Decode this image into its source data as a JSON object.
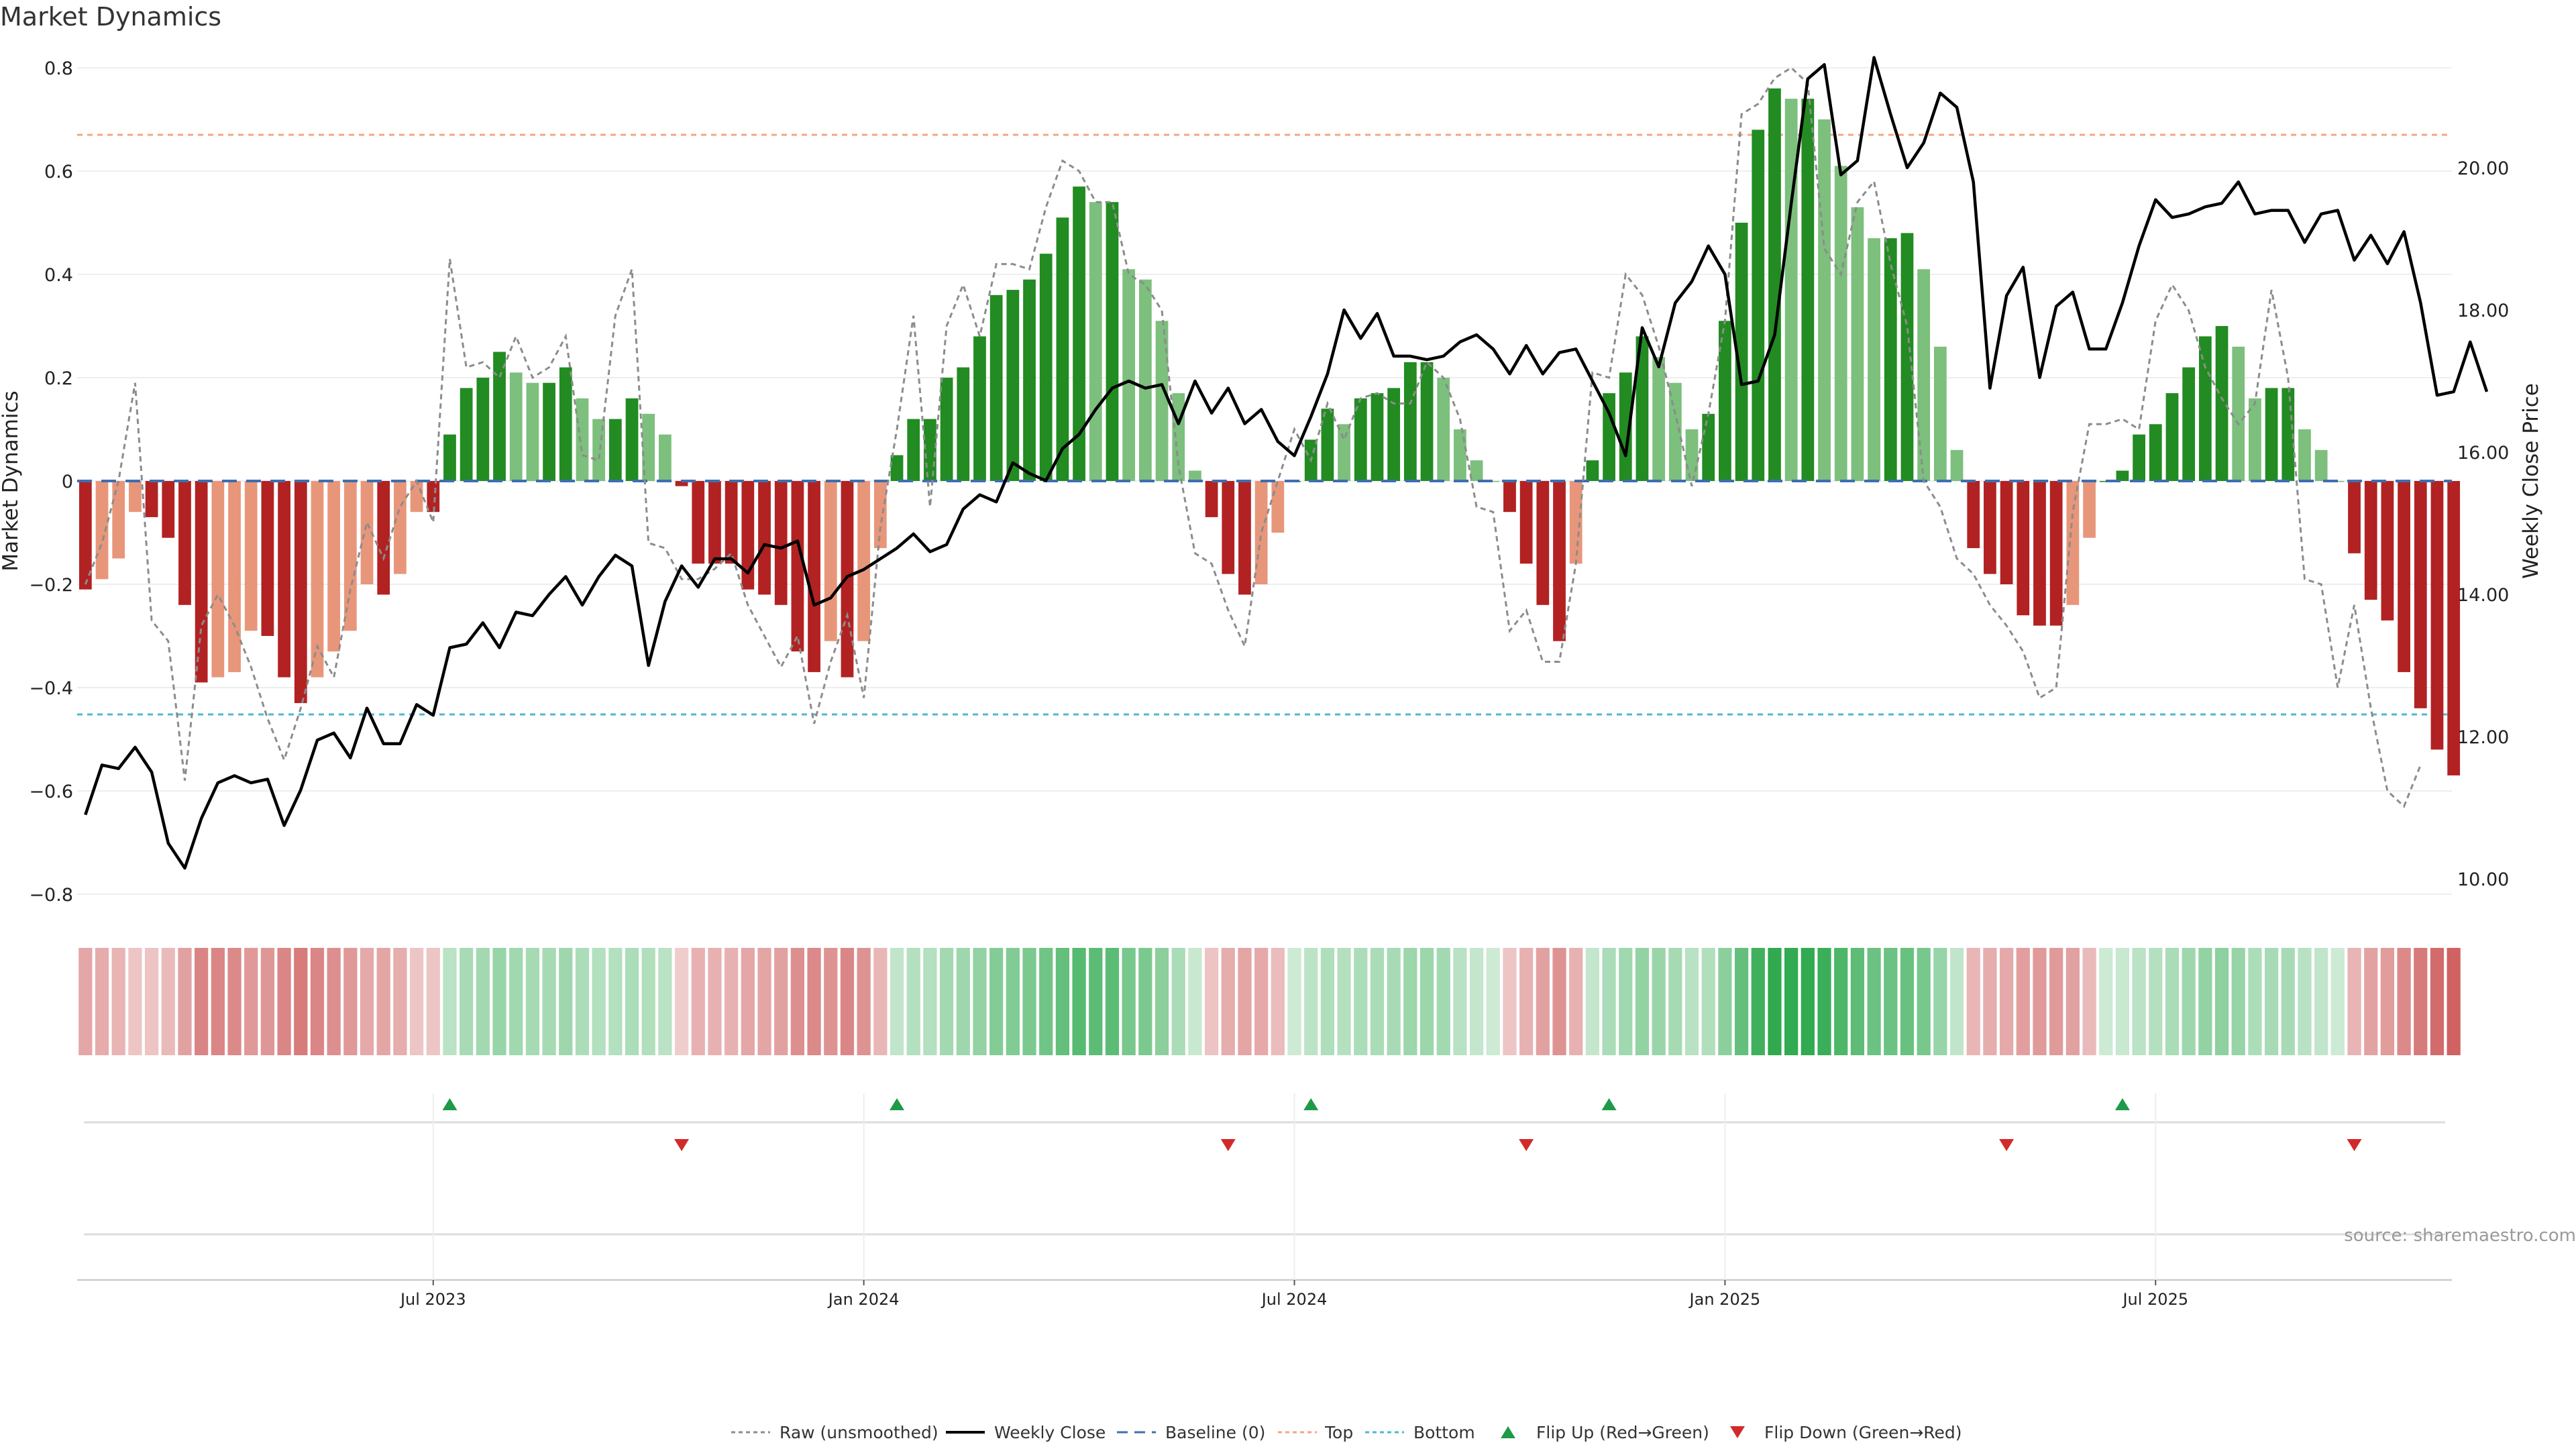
{
  "chart_data": {
    "type": "bar",
    "title": "Market Dynamics",
    "ylabel_left": "Market Dynamics",
    "ylabel_right": "Weekly Close Price",
    "source": "source: sharemaestro.com",
    "left_axis": {
      "ylim": [
        -0.85,
        0.82
      ],
      "ticks": [
        0.8,
        0.6,
        0.4,
        0.2,
        0,
        -0.2,
        -0.4,
        -0.6,
        -0.8
      ],
      "tick_labels": [
        "0.8",
        "0.6",
        "0.4",
        "0.2",
        "0",
        "−0.2",
        "−0.4",
        "−0.6",
        "−0.8"
      ]
    },
    "right_axis": {
      "ylim": [
        9.7,
        21.9
      ],
      "ticks": [
        20,
        18,
        16,
        14,
        12,
        10
      ],
      "tick_labels": [
        "20.00",
        "18.00",
        "16.00",
        "14.00",
        "12.00",
        "10.00"
      ]
    },
    "x_axis": {
      "ticks": [
        21.5,
        47.5,
        73.5,
        99.5,
        125.5
      ],
      "tick_labels": [
        "Jul 2023",
        "Jan 2024",
        "Jul 2024",
        "Jan 2025",
        "Jul 2025"
      ]
    },
    "top_level": 0.67,
    "bottom_level": -0.45,
    "dynamics": [
      -0.21,
      -0.19,
      -0.15,
      -0.06,
      -0.07,
      -0.11,
      -0.24,
      -0.39,
      -0.38,
      -0.37,
      -0.29,
      -0.3,
      -0.38,
      -0.43,
      -0.38,
      -0.33,
      -0.29,
      -0.2,
      -0.22,
      -0.18,
      -0.06,
      -0.06,
      0.09,
      0.18,
      0.2,
      0.25,
      0.21,
      0.19,
      0.19,
      0.22,
      0.16,
      0.12,
      0.12,
      0.16,
      0.13,
      0.09,
      -0.01,
      -0.16,
      -0.16,
      -0.16,
      -0.21,
      -0.22,
      -0.24,
      -0.33,
      -0.37,
      -0.31,
      -0.38,
      -0.31,
      -0.13,
      0.05,
      0.12,
      0.12,
      0.2,
      0.22,
      0.28,
      0.36,
      0.37,
      0.39,
      0.44,
      0.51,
      0.57,
      0.54,
      0.54,
      0.41,
      0.39,
      0.31,
      0.17,
      0.02,
      -0.07,
      -0.18,
      -0.22,
      -0.2,
      -0.1,
      0.0,
      0.08,
      0.14,
      0.11,
      0.16,
      0.17,
      0.18,
      0.23,
      0.23,
      0.2,
      0.1,
      0.04,
      0.0,
      -0.06,
      -0.16,
      -0.24,
      -0.31,
      -0.16,
      0.04,
      0.17,
      0.21,
      0.28,
      0.24,
      0.19,
      0.1,
      0.13,
      0.31,
      0.5,
      0.68,
      0.76,
      0.74,
      0.74,
      0.7,
      0.61,
      0.53,
      0.47,
      0.47,
      0.48,
      0.41,
      0.26,
      0.06,
      -0.13,
      -0.18,
      -0.2,
      -0.26,
      -0.28,
      -0.28,
      -0.24,
      -0.11,
      0.0,
      0.02,
      0.09,
      0.11,
      0.17,
      0.22,
      0.28,
      0.3,
      0.26,
      0.16,
      0.18,
      0.18,
      0.1,
      0.06,
      0.0,
      -0.14,
      -0.23,
      -0.27,
      -0.37,
      -0.44,
      -0.52,
      -0.57
    ],
    "raw": [
      -0.2,
      -0.12,
      0.0,
      0.19,
      -0.27,
      -0.31,
      -0.58,
      -0.28,
      -0.22,
      -0.28,
      -0.36,
      -0.46,
      -0.54,
      -0.44,
      -0.32,
      -0.38,
      -0.21,
      -0.08,
      -0.15,
      -0.05,
      0.0,
      -0.08,
      0.43,
      0.22,
      0.23,
      0.2,
      0.28,
      0.2,
      0.22,
      0.28,
      0.05,
      0.04,
      0.32,
      0.41,
      -0.12,
      -0.13,
      -0.19,
      -0.19,
      -0.17,
      -0.14,
      -0.24,
      -0.3,
      -0.36,
      -0.3,
      -0.47,
      -0.35,
      -0.26,
      -0.42,
      -0.09,
      0.1,
      0.32,
      -0.05,
      0.3,
      0.38,
      0.28,
      0.42,
      0.42,
      0.41,
      0.53,
      0.62,
      0.6,
      0.54,
      0.54,
      0.4,
      0.38,
      0.33,
      0.03,
      -0.14,
      -0.16,
      -0.25,
      -0.32,
      -0.1,
      0.0,
      0.1,
      0.04,
      0.15,
      0.08,
      0.16,
      0.17,
      0.15,
      0.15,
      0.23,
      0.2,
      0.12,
      -0.05,
      -0.06,
      -0.29,
      -0.25,
      -0.35,
      -0.35,
      -0.16,
      0.21,
      0.2,
      0.4,
      0.36,
      0.26,
      0.13,
      -0.01,
      0.13,
      0.31,
      0.71,
      0.73,
      0.78,
      0.8,
      0.77,
      0.45,
      0.4,
      0.54,
      0.58,
      0.42,
      0.3,
      0.0,
      -0.05,
      -0.15,
      -0.18,
      -0.24,
      -0.28,
      -0.33,
      -0.42,
      -0.4,
      -0.06,
      0.11,
      0.11,
      0.12,
      0.1,
      0.31,
      0.38,
      0.33,
      0.22,
      0.16,
      0.11,
      0.15,
      0.37,
      0.2,
      -0.19,
      -0.2,
      -0.4,
      -0.24,
      -0.44,
      -0.6,
      -0.63,
      -0.55
    ],
    "weekly_close": [
      10.9,
      11.6,
      11.55,
      11.85,
      11.5,
      10.5,
      10.15,
      10.85,
      11.35,
      11.45,
      11.35,
      11.4,
      10.75,
      11.25,
      11.95,
      12.05,
      11.7,
      12.4,
      11.9,
      11.9,
      12.45,
      12.3,
      13.25,
      13.3,
      13.6,
      13.25,
      13.75,
      13.7,
      14.0,
      14.25,
      13.85,
      14.25,
      14.55,
      14.4,
      13.0,
      13.9,
      14.4,
      14.1,
      14.5,
      14.5,
      14.3,
      14.7,
      14.65,
      14.75,
      13.85,
      13.95,
      14.25,
      14.35,
      14.5,
      14.65,
      14.85,
      14.6,
      14.7,
      15.2,
      15.4,
      15.3,
      15.85,
      15.7,
      15.6,
      16.05,
      16.25,
      16.6,
      16.9,
      17.0,
      16.9,
      16.95,
      16.4,
      17.0,
      16.55,
      16.9,
      16.4,
      16.6,
      16.15,
      15.95,
      16.5,
      17.1,
      18.0,
      17.6,
      17.95,
      17.35,
      17.35,
      17.3,
      17.35,
      17.55,
      17.65,
      17.45,
      17.1,
      17.5,
      17.1,
      17.4,
      17.45,
      17.0,
      16.55,
      15.95,
      17.75,
      17.2,
      18.1,
      18.4,
      18.9,
      18.5,
      16.95,
      17.0,
      17.65,
      19.5,
      21.25,
      21.45,
      19.9,
      20.1,
      21.55,
      20.75,
      20.0,
      20.35,
      21.05,
      20.85,
      19.8,
      16.9,
      18.2,
      18.6,
      17.05,
      18.05,
      18.25,
      17.45,
      17.45,
      18.1,
      18.9,
      19.55,
      19.3,
      19.35,
      19.45,
      19.5,
      19.8,
      19.35,
      19.4,
      19.4,
      18.95,
      19.35,
      19.4,
      18.7,
      19.05,
      18.65,
      19.1,
      18.1,
      16.8,
      16.85,
      17.55,
      16.85
    ],
    "flip_up_indices": [
      22,
      49,
      74,
      92,
      123
    ],
    "flip_down_indices": [
      36,
      69,
      87,
      116,
      137
    ],
    "legend": [
      "Raw (unsmoothed)",
      "Weekly Close",
      "Baseline (0)",
      "Top",
      "Bottom",
      "Flip Up (Red→Green)",
      "Flip Down (Green→Red)"
    ],
    "colors": {
      "strong_green": "#228b22",
      "light_green": "#7dbf7d",
      "strong_red": "#b22222",
      "light_red": "#e8967a",
      "top_line": "#f4a582",
      "bottom_line": "#4fb7d0",
      "baseline": "#3e6fb0",
      "raw_line": "#8c8c8c",
      "close_line": "#000000",
      "flip_up": "#1e9a48",
      "flip_down": "#d22a2a",
      "heat_green": "#19a03c",
      "heat_red": "#be2828"
    }
  }
}
